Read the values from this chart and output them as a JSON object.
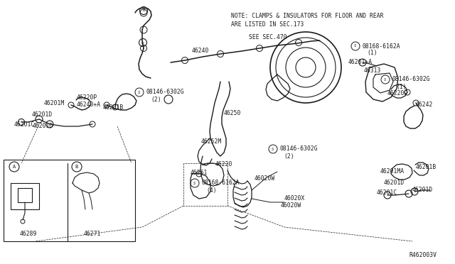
{
  "bg_color": "#ffffff",
  "line_color": "#1a1a1a",
  "text_color": "#1a1a1a",
  "fig_width": 6.4,
  "fig_height": 3.72,
  "dpi": 100,
  "note_line1": "NOTE: CLAMPS & INSULATORS FOR FLOOR AND REAR",
  "note_line2": "ARE LISTED IN SEC.173",
  "see_sec": "SEE SEC.470",
  "ref_code": "R462003V",
  "font_size": 5.8,
  "font_family": "monospace"
}
